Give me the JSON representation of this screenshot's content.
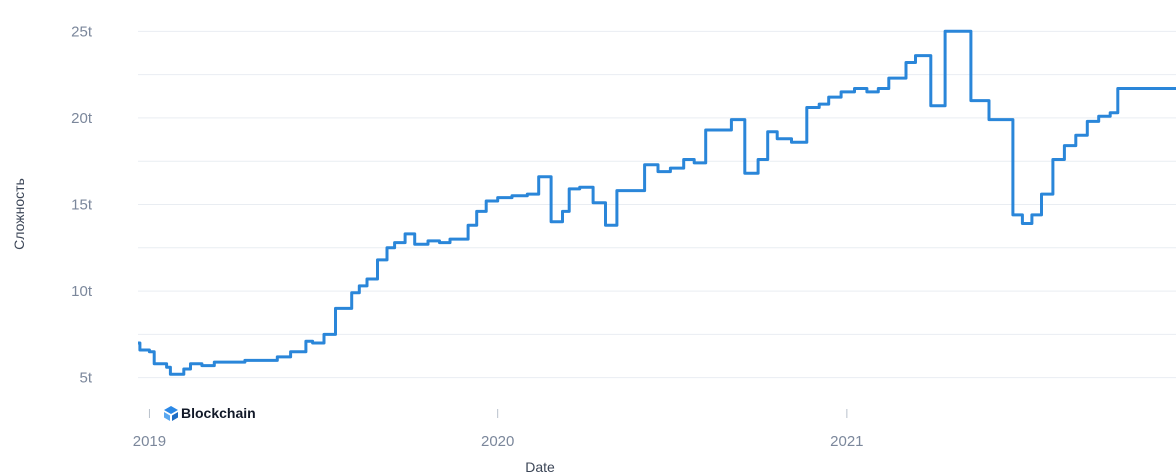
{
  "chart_data": {
    "type": "line",
    "title": "",
    "xlabel": "Date",
    "ylabel": "Сложность",
    "xlim": [
      "2018-12-20",
      "2021-12-12"
    ],
    "ylim": [
      4.0,
      26.0
    ],
    "y_ticks": [
      {
        "value": 5,
        "label": "5t"
      },
      {
        "value": 10,
        "label": "10t"
      },
      {
        "value": 15,
        "label": "15t"
      },
      {
        "value": 20,
        "label": "20t"
      },
      {
        "value": 25,
        "label": "25t"
      }
    ],
    "x_ticks": [
      {
        "value": "2019-01-01",
        "label": "2019"
      },
      {
        "value": "2020-01-01",
        "label": "2020"
      },
      {
        "value": "2021-01-01",
        "label": "2021"
      }
    ],
    "grid": true,
    "colors": {
      "line": "#2a86d9",
      "grid": "#e9edf2",
      "brand_icon": "#2b88e6"
    },
    "watermark": {
      "brand": "Blockchain",
      "icon": "blockchain-cube-icon"
    },
    "series": [
      {
        "values": [
          [
            "2018-12-20",
            7.0
          ],
          [
            "2018-12-22",
            6.6
          ],
          [
            "2019-01-01",
            6.5
          ],
          [
            "2019-01-06",
            5.8
          ],
          [
            "2019-01-19",
            5.6
          ],
          [
            "2019-01-23",
            5.2
          ],
          [
            "2019-02-06",
            5.5
          ],
          [
            "2019-02-13",
            5.8
          ],
          [
            "2019-02-25",
            5.7
          ],
          [
            "2019-03-10",
            5.9
          ],
          [
            "2019-04-11",
            6.0
          ],
          [
            "2019-05-15",
            6.2
          ],
          [
            "2019-05-29",
            6.5
          ],
          [
            "2019-06-14",
            7.1
          ],
          [
            "2019-06-21",
            7.0
          ],
          [
            "2019-07-03",
            7.5
          ],
          [
            "2019-07-15",
            9.0
          ],
          [
            "2019-08-01",
            9.9
          ],
          [
            "2019-08-09",
            10.3
          ],
          [
            "2019-08-17",
            10.7
          ],
          [
            "2019-08-28",
            11.8
          ],
          [
            "2019-09-07",
            12.5
          ],
          [
            "2019-09-15",
            12.8
          ],
          [
            "2019-09-26",
            13.3
          ],
          [
            "2019-10-06",
            12.7
          ],
          [
            "2019-10-20",
            12.9
          ],
          [
            "2019-11-01",
            12.8
          ],
          [
            "2019-11-12",
            13.0
          ],
          [
            "2019-12-01",
            13.8
          ],
          [
            "2019-12-10",
            14.6
          ],
          [
            "2019-12-20",
            15.2
          ],
          [
            "2020-01-01",
            15.4
          ],
          [
            "2020-01-16",
            15.5
          ],
          [
            "2020-02-01",
            15.6
          ],
          [
            "2020-02-13",
            16.6
          ],
          [
            "2020-02-26",
            14.0
          ],
          [
            "2020-03-09",
            14.6
          ],
          [
            "2020-03-16",
            15.9
          ],
          [
            "2020-03-27",
            16.0
          ],
          [
            "2020-04-10",
            15.1
          ],
          [
            "2020-04-23",
            13.8
          ],
          [
            "2020-05-05",
            15.8
          ],
          [
            "2020-06-03",
            17.3
          ],
          [
            "2020-06-17",
            16.9
          ],
          [
            "2020-06-30",
            17.1
          ],
          [
            "2020-07-14",
            17.6
          ],
          [
            "2020-07-25",
            17.4
          ],
          [
            "2020-08-06",
            19.3
          ],
          [
            "2020-09-02",
            19.9
          ],
          [
            "2020-09-16",
            16.8
          ],
          [
            "2020-09-30",
            17.6
          ],
          [
            "2020-10-10",
            19.2
          ],
          [
            "2020-10-20",
            18.8
          ],
          [
            "2020-11-04",
            18.6
          ],
          [
            "2020-11-20",
            20.6
          ],
          [
            "2020-12-03",
            20.8
          ],
          [
            "2020-12-13",
            21.2
          ],
          [
            "2020-12-26",
            21.5
          ],
          [
            "2021-01-09",
            21.7
          ],
          [
            "2021-01-22",
            21.5
          ],
          [
            "2021-02-03",
            21.7
          ],
          [
            "2021-02-14",
            22.3
          ],
          [
            "2021-03-04",
            23.2
          ],
          [
            "2021-03-14",
            23.6
          ],
          [
            "2021-03-30",
            20.7
          ],
          [
            "2021-04-14",
            25.0
          ],
          [
            "2021-05-11",
            21.0
          ],
          [
            "2021-05-30",
            19.9
          ],
          [
            "2021-06-24",
            14.4
          ],
          [
            "2021-07-04",
            13.9
          ],
          [
            "2021-07-14",
            14.4
          ],
          [
            "2021-07-24",
            15.6
          ],
          [
            "2021-08-05",
            17.6
          ],
          [
            "2021-08-17",
            18.4
          ],
          [
            "2021-08-29",
            19.0
          ],
          [
            "2021-09-10",
            19.8
          ],
          [
            "2021-09-22",
            20.1
          ],
          [
            "2021-10-04",
            20.3
          ],
          [
            "2021-10-12",
            21.7
          ]
        ]
      }
    ]
  }
}
